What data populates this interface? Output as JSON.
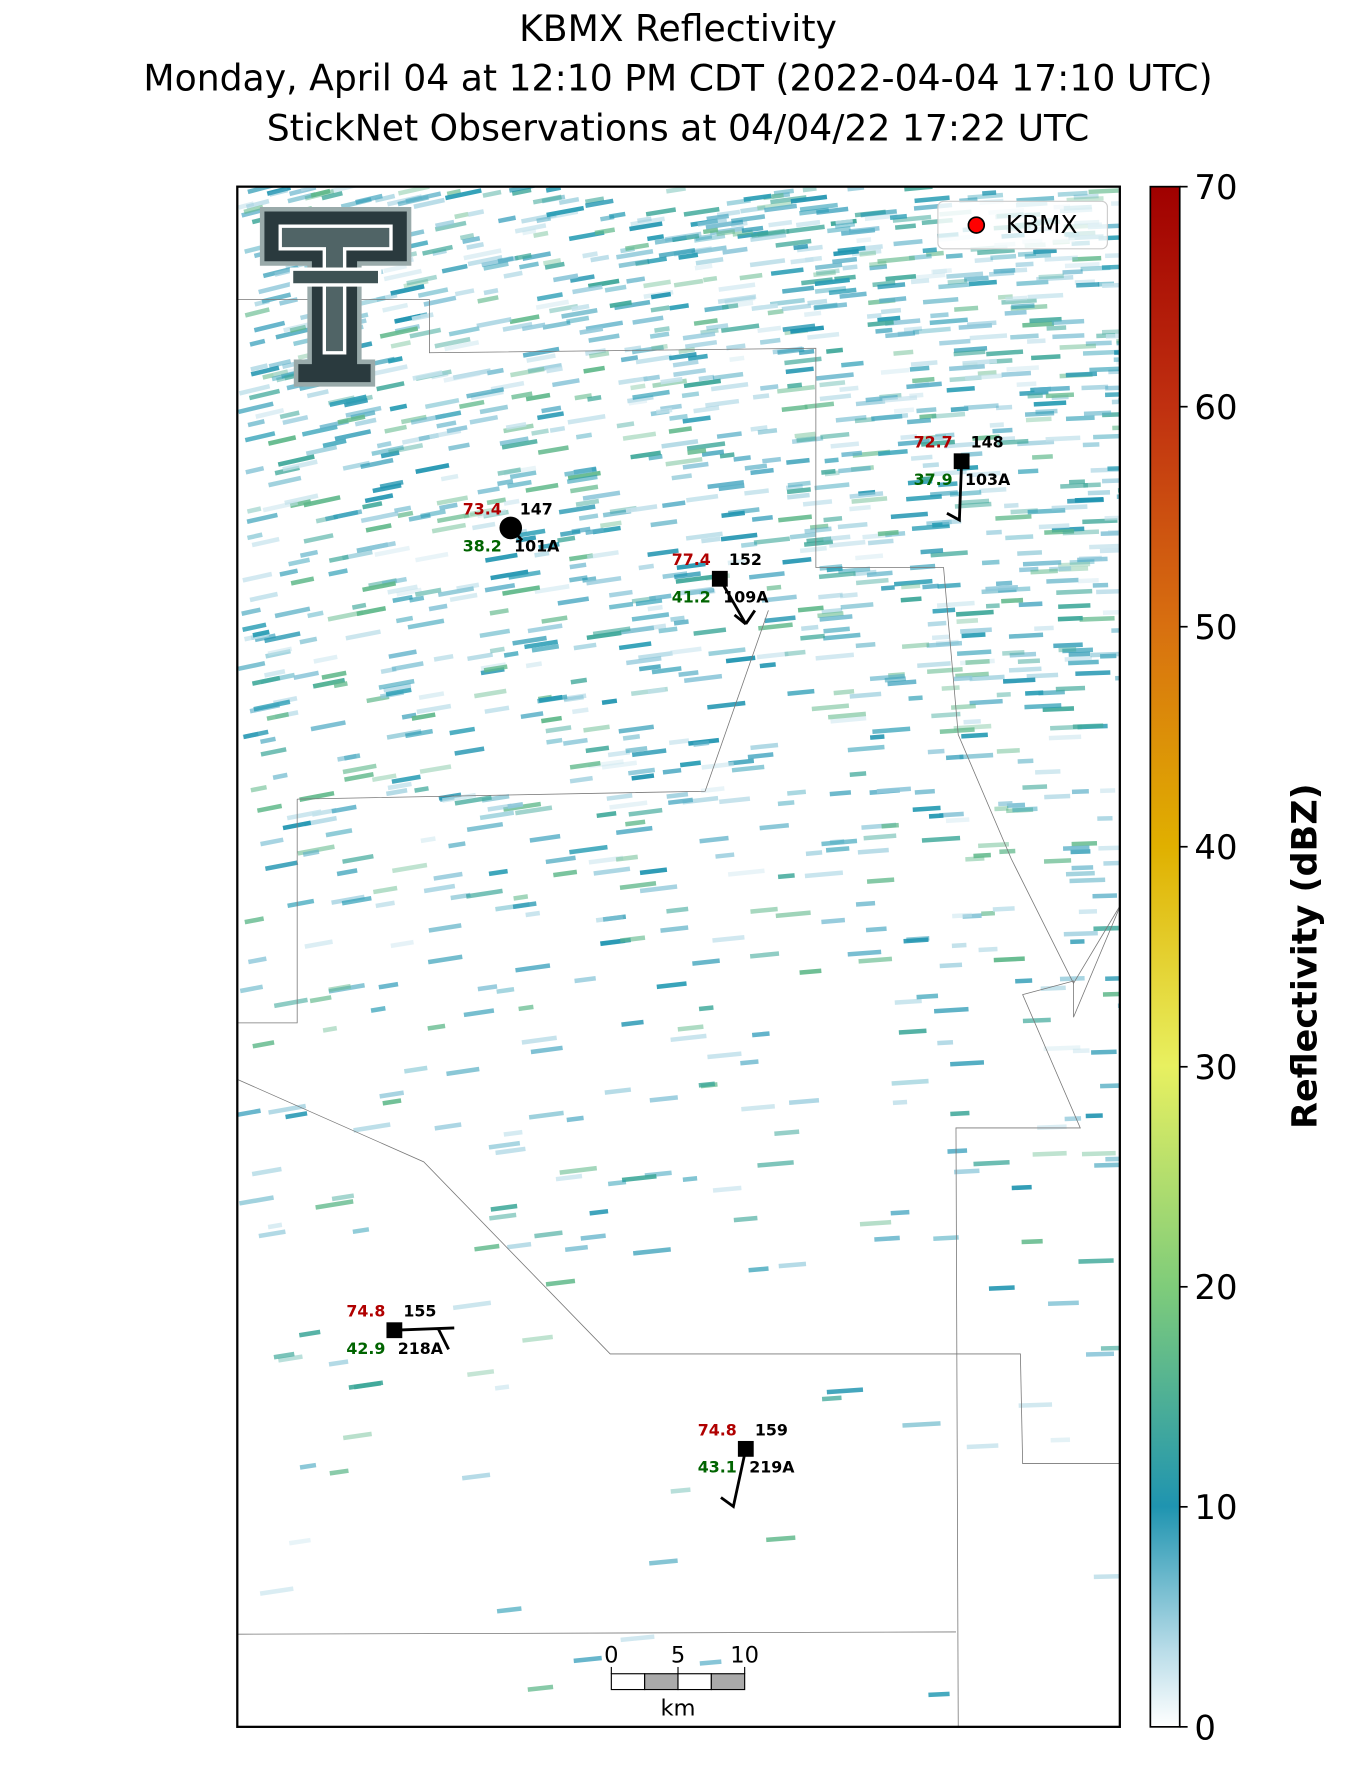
{
  "title": {
    "line1": "KBMX Reflectivity",
    "line2": "Monday, April 04 at 12:10 PM CDT (2022-04-04 17:10 UTC)",
    "line3": "StickNet Observations at 04/04/22 17:22 UTC"
  },
  "legend": {
    "label": "KBMX",
    "color": "#ff0000"
  },
  "colorbar": {
    "label": "Reflectivity (dBZ)",
    "lim": [
      0,
      70
    ],
    "ticks": [
      0,
      10,
      20,
      30,
      40,
      50,
      60,
      70
    ]
  },
  "stations": [
    {
      "id": "101A",
      "temperature": 73.4,
      "dewpoint": 38.2,
      "pressure": 147,
      "marker": "circle"
    },
    {
      "id": "109A",
      "temperature": 77.4,
      "dewpoint": 41.2,
      "pressure": 152,
      "marker": "square"
    },
    {
      "id": "103A",
      "temperature": 72.7,
      "dewpoint": 37.9,
      "pressure": 148,
      "marker": "square"
    },
    {
      "id": "218A",
      "temperature": 74.8,
      "dewpoint": 42.9,
      "pressure": 155,
      "marker": "square"
    },
    {
      "id": "219A",
      "temperature": 74.8,
      "dewpoint": 43.1,
      "pressure": 159,
      "marker": "square"
    }
  ],
  "scale_bar": {
    "ticks": [
      0,
      5,
      10
    ],
    "unit": "km"
  }
}
